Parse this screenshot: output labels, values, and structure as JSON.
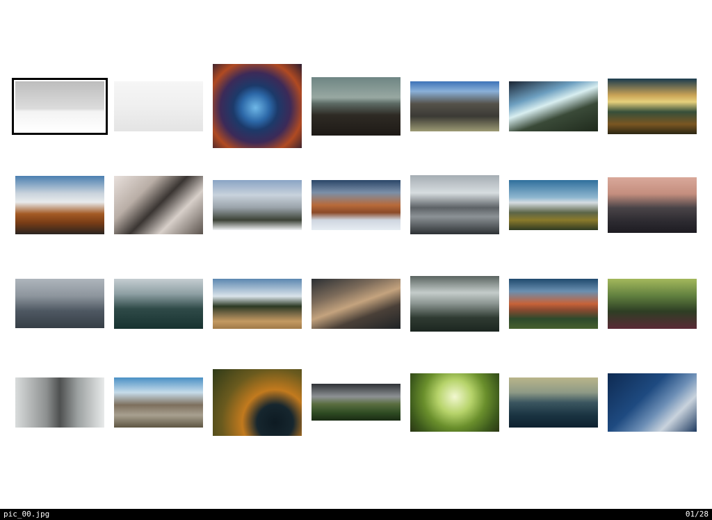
{
  "status": {
    "filename": "pic_00.jpg",
    "counter": "01/28"
  },
  "selected_index": 0,
  "thumbnails": [
    {
      "name": "thumb-lone-tree-snow",
      "bg": "linear-gradient(180deg,#bdbdbd 0%,#dcdcdc 55%,#f3f3f3 60%,#ffffff 100%)"
    },
    {
      "name": "thumb-pine-snow-field",
      "bg": "linear-gradient(180deg,#f6f6f6 0%,#efefef 50%,#e4e4e4 100%)"
    },
    {
      "name": "thumb-bubble-nebula",
      "bg": "radial-gradient(circle at 48% 52%,#6fb8e8 0%,#2c68a8 22%,#1c3a6a 35%,#3c2a58 55%,#b04a22 75%,#2c1e30 100%)"
    },
    {
      "name": "thumb-dark-mountain-forest",
      "bg": "linear-gradient(180deg,#6e8583 0%,#98a8a2 35%,#5d6b65 45%,#2e2a24 65%,#1e1a16 100%)"
    },
    {
      "name": "thumb-yosemite-valley",
      "bg": "linear-gradient(180deg,#3d73b8 0%,#8ab0d8 20%,#55524a 45%,#3b3a35 70%,#9c9a74 100%)"
    },
    {
      "name": "thumb-alpine-sunburst",
      "bg": "linear-gradient(160deg,#1b2533 0%,#6d9fc0 30%,#d8eef0 45%,#3a4a38 65%,#1f2a1c 100%)"
    },
    {
      "name": "thumb-golden-hills-sunset",
      "bg": "linear-gradient(180deg,#1a3b4e 0%,#caa356 30%,#e6d07c 42%,#364f3a 60%,#7a5622 82%,#2b2614 100%)"
    },
    {
      "name": "thumb-snowy-peaks-road",
      "bg": "linear-gradient(180deg,#4a7fb0 0%,#c9d3dc 30%,#e8ebec 45%,#a35a24 65%,#7a3d16 80%,#2a2420 100%)"
    },
    {
      "name": "thumb-cherry-blossom-street",
      "bg": "linear-gradient(135deg,#e8e0dc 0%,#b9aea6 30%,#3a3532 50%,#d7cfc9 70%,#5a524c 100%)"
    },
    {
      "name": "thumb-snowy-ridge",
      "bg": "linear-gradient(180deg,#8aa4c4 0%,#c8d2dc 30%,#9aa3aa 55%,#3c4236 80%,#f0f2f4 100%)"
    },
    {
      "name": "thumb-sea-of-clouds-peaks",
      "bg": "linear-gradient(180deg,#2a4668 0%,#7b8fa8 25%,#b86a3a 50%,#8b4a28 65%,#cfd6e0 80%,#e6ecf2 100%)"
    },
    {
      "name": "thumb-glacier-valley",
      "bg": "linear-gradient(180deg,#a5adb3 0%,#d7dde0 30%,#5d6266 55%,#8c9296 70%,#2d3134 100%)"
    },
    {
      "name": "thumb-autumn-mountain-forest",
      "bg": "linear-gradient(180deg,#2f6f9c 0%,#8fb7d0 35%,#d6dde2 45%,#5c6548 65%,#8a7a2c 80%,#2f3a22 100%)"
    },
    {
      "name": "thumb-railway-tracks-dusk",
      "bg": "linear-gradient(180deg,#d9a89a 0%,#c48e7e 30%,#4a4448 55%,#2c2a30 80%,#1e1c22 100%)"
    },
    {
      "name": "thumb-misty-forest-grey",
      "bg": "linear-gradient(180deg,#aeb5bc 0%,#8d959d 35%,#4e5862 65%,#363e46 100%)"
    },
    {
      "name": "thumb-misty-forest-teal",
      "bg": "linear-gradient(180deg,#c5cdd1 0%,#8ea0a4 30%,#2f4a48 60%,#173230 100%)"
    },
    {
      "name": "thumb-snowcapped-volcano-field",
      "bg": "linear-gradient(180deg,#5b87b0 0%,#d9e3ea 35%,#2c3a24 55%,#7a6a48 70%,#c49a62 85%,#a07a48 100%)"
    },
    {
      "name": "thumb-city-aerial",
      "bg": "linear-gradient(160deg,#2b2f33 0%,#7c6b5a 30%,#c4a37e 50%,#4a4038 70%,#1f2326 100%)"
    },
    {
      "name": "thumb-cloudy-valley",
      "bg": "linear-gradient(180deg,#5a6460 0%,#c4ccca 30%,#8a9490 50%,#2f3b32 75%,#1c2620 100%)"
    },
    {
      "name": "thumb-teton-sunset",
      "bg": "linear-gradient(180deg,#1f4a6e 0%,#6a8fb0 25%,#c76238 50%,#8a4a30 62%,#2e4a2c 80%,#47602e 100%)"
    },
    {
      "name": "thumb-green-forest-rays",
      "bg": "linear-gradient(180deg,#a3b85c 0%,#5f7e3e 35%,#2e3e24 65%,#5a2a36 100%)"
    },
    {
      "name": "thumb-cliff-in-clouds",
      "bg": "linear-gradient(90deg,#d9dcdc 0%,#8d9090 35%,#4e5050 50%,#9ba0a0 70%,#e8eaea 100%)"
    },
    {
      "name": "thumb-balloons-valley",
      "bg": "linear-gradient(180deg,#4a90c4 0%,#c6dcea 30%,#7d6f5d 55%,#a8a090 75%,#5e5642 100%)"
    },
    {
      "name": "thumb-autumn-lake-aerial",
      "bg": "radial-gradient(circle at 70% 80%,#0d1a22 0%,#16262e 22%,#c27a1e 40%,#6a5a1e 65%,#2e3a18 100%)"
    },
    {
      "name": "thumb-green-peaks-storm",
      "bg": "linear-gradient(180deg,#2f3236 0%,#8d9194 35%,#5a6e40 55%,#2d4a22 80%,#1a2b14 100%)"
    },
    {
      "name": "thumb-giant-tree",
      "bg": "radial-gradient(circle at 50% 40%,#f2f8d0 0%,#b6d36a 30%,#6a8f2c 55%,#3d5a1c 80%,#2a3614 100%)"
    },
    {
      "name": "thumb-calm-ocean-horizon",
      "bg": "linear-gradient(180deg,#b9b58a 0%,#8e9a86 30%,#3b5660 50%,#1a3442 75%,#0e2230 100%)"
    },
    {
      "name": "thumb-skyscraper-night",
      "bg": "linear-gradient(135deg,#0e2a52 0%,#1e4a80 40%,#6d8fb6 60%,#c9d3dd 75%,#1e3a60 100%)"
    }
  ]
}
